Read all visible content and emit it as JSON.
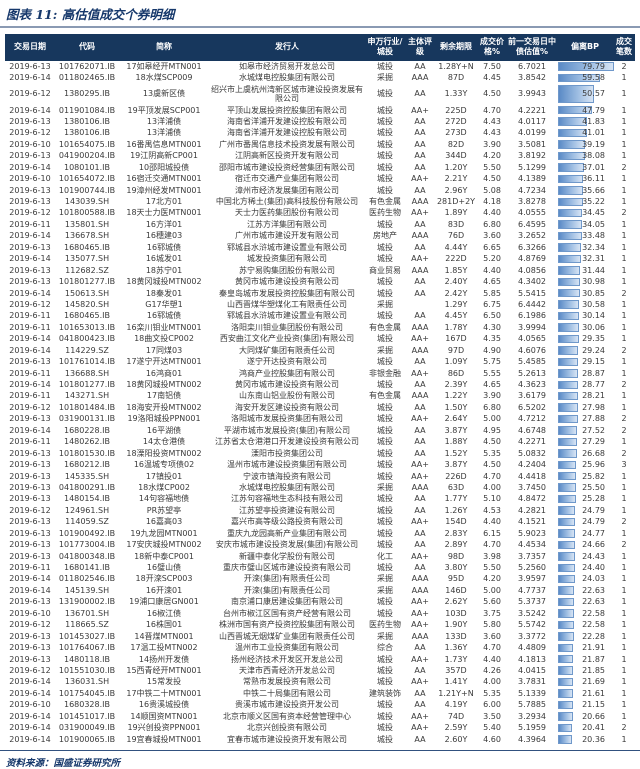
{
  "title": "图表 11: 高估值成交个券明细",
  "footer": {
    "source_label": "资料来源：国盛证券研究所"
  },
  "colors": {
    "header_bg": "#17375d",
    "title_text": "#16386b",
    "bar_start": "#5a8ac6",
    "bar_end": "#d7e4f4"
  },
  "table": {
    "bp_max": 79.79,
    "columns": [
      "交易日期",
      "代码",
      "简称",
      "发行人",
      "申万行业/城投",
      "主体评级",
      "剩余期限",
      "成交价格%",
      "前一交易日中债估值%",
      "偏离BP",
      "成交笔数"
    ],
    "rows": [
      [
        "2019-6-13",
        "101762071.IB",
        "17如皋经开MTN001",
        "如皋市经济贸易开发总公司",
        "城投",
        "AA",
        "1.28Y+N",
        "7.50",
        "6.7021",
        "79.79",
        "2"
      ],
      [
        "2019-6-14",
        "011802465.IB",
        "18水煤SCP009",
        "水城煤电控股集团有限公司",
        "采掘",
        "AAA",
        "87D",
        "4.45",
        "3.8542",
        "59.58",
        "1"
      ],
      [
        "2019-6-12",
        "1380295.IB",
        "13虞新区债",
        "绍兴市上虞杭州湾新区城市建设投资发展有限公司",
        "城投",
        "AA",
        "1.33Y",
        "4.50",
        "3.9943",
        "50.57",
        "1"
      ],
      [
        "2019-6-14",
        "011901084.IB",
        "19平顶发展SCP001",
        "平顶山发展投资控股集团有限公司",
        "城投",
        "AA+",
        "225D",
        "4.70",
        "4.2221",
        "47.79",
        "1"
      ],
      [
        "2019-6-13",
        "1380106.IB",
        "13洋浦债",
        "海南省洋浦开发建设控股有限公司",
        "城投",
        "AA",
        "272D",
        "4.43",
        "4.0117",
        "41.83",
        "1"
      ],
      [
        "2019-6-12",
        "1380106.IB",
        "13洋浦债",
        "海南省洋浦开发建设控股有限公司",
        "城投",
        "AA",
        "273D",
        "4.43",
        "4.0199",
        "41.01",
        "1"
      ],
      [
        "2019-6-10",
        "101654075.IB",
        "16番禺信息MTN001",
        "广州市番禺信息技术投资发展有限公司",
        "城投",
        "AA",
        "82D",
        "3.90",
        "3.5081",
        "39.19",
        "1"
      ],
      [
        "2019-6-13",
        "041900204.IB",
        "19江阴高新CP001",
        "江阴高新区投资开发有限公司",
        "城投",
        "AA",
        "344D",
        "4.20",
        "3.8192",
        "38.08",
        "1"
      ],
      [
        "2019-6-14",
        "1080101.IB",
        "10邵阳城投债",
        "邵阳市城市建设投资经营集团有限公司",
        "城投",
        "AA",
        "1.20Y",
        "5.50",
        "5.1299",
        "37.01",
        "2"
      ],
      [
        "2019-6-10",
        "101654072.IB",
        "16宿迁交通MTN001",
        "宿迁市交通产业集团有限公司",
        "城投",
        "AA+",
        "2.21Y",
        "4.50",
        "4.1389",
        "36.11",
        "1"
      ],
      [
        "2019-6-13",
        "101900744.IB",
        "19漳州经发MTN001",
        "漳州市经济发展集团有限公司",
        "城投",
        "AA",
        "2.96Y",
        "5.08",
        "4.7234",
        "35.66",
        "1"
      ],
      [
        "2019-6-13",
        "143039.SH",
        "17北方01",
        "中国北方稀土(集团)高科技股份有限公司",
        "有色金属",
        "AAA",
        "281D+2Y",
        "4.18",
        "3.8278",
        "35.22",
        "1"
      ],
      [
        "2019-6-12",
        "101800588.IB",
        "18天士力医MTN001",
        "天士力医药集团股份有限公司",
        "医药生物",
        "AA+",
        "1.89Y",
        "4.40",
        "4.0555",
        "34.45",
        "2"
      ],
      [
        "2019-6-11",
        "135801.SH",
        "16方洋01",
        "江苏方洋集团有限公司",
        "城投",
        "AA",
        "83D",
        "6.80",
        "6.4595",
        "34.05",
        "1"
      ],
      [
        "2019-6-14",
        "136678.SH",
        "16穗建03",
        "广州市城市建设开发有限公司",
        "房地产",
        "AAA",
        "76D",
        "3.60",
        "3.2652",
        "33.48",
        "1"
      ],
      [
        "2019-6-13",
        "1680465.IB",
        "16郓城债",
        "郓城县水浒城市建设置业有限公司",
        "城投",
        "AA",
        "4.44Y",
        "6.65",
        "6.3266",
        "32.34",
        "1"
      ],
      [
        "2019-6-14",
        "135077.SH",
        "16城发01",
        "城发投资集团有限公司",
        "城投",
        "AA+",
        "222D",
        "5.20",
        "4.8769",
        "32.31",
        "1"
      ],
      [
        "2019-6-13",
        "112682.SZ",
        "18苏宁01",
        "苏宁易购集团股份有限公司",
        "商业贸易",
        "AAA",
        "1.85Y",
        "4.40",
        "4.0856",
        "31.44",
        "1"
      ],
      [
        "2019-6-13",
        "101801277.IB",
        "18黄冈城投MTN002",
        "黄冈市城市建设投资有限公司",
        "城投",
        "AA",
        "2.40Y",
        "4.65",
        "4.3402",
        "30.98",
        "1"
      ],
      [
        "2019-6-14",
        "150613.SH",
        "18秦发01",
        "秦皇岛城市发展投资控股集团有限公司",
        "城投",
        "AA",
        "2.42Y",
        "5.85",
        "5.5415",
        "30.85",
        "2"
      ],
      [
        "2019-6-12",
        "145820.SH",
        "G17华塑1",
        "山西晋煤华塑煤化工有限责任公司",
        "采掘",
        "",
        "1.29Y",
        "6.75",
        "6.4442",
        "30.58",
        "1"
      ],
      [
        "2019-6-11",
        "1680465.IB",
        "16郓城债",
        "郓城县水浒城市建设置业有限公司",
        "城投",
        "AA",
        "4.45Y",
        "6.50",
        "6.1986",
        "30.14",
        "1"
      ],
      [
        "2019-6-11",
        "101653013.IB",
        "16栾川钼业MTN001",
        "洛阳栾川钼业集团股份有限公司",
        "有色金属",
        "AAA",
        "1.78Y",
        "4.30",
        "3.9994",
        "30.06",
        "1"
      ],
      [
        "2019-6-14",
        "041800423.IB",
        "18曲文投CP002",
        "西安曲江文化产业投资(集团)有限公司",
        "城投",
        "AA+",
        "167D",
        "4.35",
        "4.0565",
        "29.35",
        "1"
      ],
      [
        "2019-6-14",
        "114229.SZ",
        "17同煤03",
        "大同煤矿集团有限责任公司",
        "采掘",
        "AAA",
        "97D",
        "4.90",
        "4.6076",
        "29.24",
        "2"
      ],
      [
        "2019-6-13",
        "101761014.IB",
        "17遂宁开达MTN001",
        "遂宁开达投资有限公司",
        "城投",
        "AA",
        "1.09Y",
        "5.75",
        "5.4585",
        "29.15",
        "1"
      ],
      [
        "2019-6-11",
        "136688.SH",
        "16鸿商01",
        "鸿商产业控股集团有限公司",
        "非银金融",
        "AA+",
        "86D",
        "5.55",
        "5.2613",
        "28.87",
        "1"
      ],
      [
        "2019-6-14",
        "101801277.IB",
        "18黄冈城投MTN002",
        "黄冈市城市建设投资有限公司",
        "城投",
        "AA",
        "2.39Y",
        "4.65",
        "4.3623",
        "28.77",
        "2"
      ],
      [
        "2019-6-11",
        "143271.SH",
        "17南铝债",
        "山东南山铝业股份有限公司",
        "有色金属",
        "AAA",
        "1.22Y",
        "3.90",
        "3.6179",
        "28.21",
        "1"
      ],
      [
        "2019-6-12",
        "101801484.IB",
        "18海安开投MTN002",
        "海安开发区建设投资有限公司",
        "城投",
        "AA",
        "1.50Y",
        "6.80",
        "6.5202",
        "27.98",
        "1"
      ],
      [
        "2019-6-13",
        "031900131.IB",
        "19洛阳城投PPN001",
        "洛阳城市发展投资集团有限公司",
        "城投",
        "AA+",
        "2.64Y",
        "5.00",
        "4.7212",
        "27.88",
        "2"
      ],
      [
        "2019-6-14",
        "1680228.IB",
        "16平湖债",
        "平湖市城市发展投资(集团)有限公司",
        "城投",
        "AA",
        "3.87Y",
        "4.95",
        "4.6748",
        "27.52",
        "2"
      ],
      [
        "2019-6-11",
        "1480262.IB",
        "14太仓港债",
        "江苏省太仓港港口开发建设投资有限公司",
        "城投",
        "AA",
        "1.88Y",
        "4.50",
        "4.2271",
        "27.29",
        "1"
      ],
      [
        "2019-6-13",
        "101801530.IB",
        "18溧阳投资MTN002",
        "溧阳市投资集团公司",
        "城投",
        "AA",
        "1.52Y",
        "5.35",
        "5.0832",
        "26.68",
        "2"
      ],
      [
        "2019-6-13",
        "1680212.IB",
        "16温城专项债02",
        "温州市城市建设投资集团有限公司",
        "城投",
        "AA+",
        "3.87Y",
        "4.50",
        "4.2404",
        "25.96",
        "3"
      ],
      [
        "2019-6-13",
        "145335.SH",
        "17镇投01",
        "宁波市镇海投资有限公司",
        "城投",
        "AA+",
        "226D",
        "4.70",
        "4.4418",
        "25.82",
        "1"
      ],
      [
        "2019-6-13",
        "041800291.IB",
        "18水煤CP002",
        "水城煤电控股集团有限公司",
        "采掘",
        "AAA",
        "63D",
        "4.00",
        "3.7450",
        "25.50",
        "1"
      ],
      [
        "2019-6-13",
        "1480154.IB",
        "14句容福地债",
        "江苏句容福地生态科技有限公司",
        "城投",
        "AA",
        "1.77Y",
        "5.10",
        "4.8472",
        "25.28",
        "1"
      ],
      [
        "2019-6-12",
        "124961.SH",
        "PR苏望亭",
        "江苏望亭投资建设有限公司",
        "城投",
        "AA",
        "1.26Y",
        "4.53",
        "4.2821",
        "24.79",
        "1"
      ],
      [
        "2019-6-13",
        "114059.SZ",
        "16嘉高03",
        "嘉兴市高等级公路投资有限公司",
        "城投",
        "AA+",
        "154D",
        "4.40",
        "4.1521",
        "24.79",
        "2"
      ],
      [
        "2019-6-13",
        "101900492.IB",
        "19九龙园MTN001",
        "重庆九龙园高新产业集团有限公司",
        "城投",
        "AA",
        "2.83Y",
        "6.15",
        "5.9023",
        "24.77",
        "1"
      ],
      [
        "2019-6-13",
        "101773004.IB",
        "17安庆城投MTN002",
        "安庆市城市建设投资发展(集团)有限公司",
        "城投",
        "AA",
        "2.89Y",
        "4.70",
        "4.4534",
        "24.66",
        "2"
      ],
      [
        "2019-6-13",
        "041800348.IB",
        "18新中泰CP001",
        "新疆中泰化学股份有限公司",
        "化工",
        "AA+",
        "98D",
        "3.98",
        "3.7357",
        "24.43",
        "1"
      ],
      [
        "2019-6-11",
        "1680141.IB",
        "16璧山债",
        "重庆市璧山区城市建设投资有限公司",
        "城投",
        "AA",
        "3.80Y",
        "5.50",
        "5.2560",
        "24.40",
        "1"
      ],
      [
        "2019-6-14",
        "011802546.IB",
        "18开滦SCP003",
        "开滦(集团)有限责任公司",
        "采掘",
        "AAA",
        "95D",
        "4.20",
        "3.9597",
        "24.03",
        "1"
      ],
      [
        "2019-6-14",
        "145139.SH",
        "16开滦01",
        "开滦(集团)有限责任公司",
        "采掘",
        "AAA",
        "146D",
        "5.00",
        "4.7737",
        "22.63",
        "1"
      ],
      [
        "2019-6-13",
        "131900002.IB",
        "19浦口康居GN001",
        "南京浦口康居建设集团有限公司",
        "城投",
        "AA+",
        "2.62Y",
        "5.60",
        "5.3737",
        "22.63",
        "1"
      ],
      [
        "2019-6-10",
        "136701.SH",
        "16椒江债",
        "台州市椒江区国有资产经营有限公司",
        "城投",
        "AA+",
        "103D",
        "3.75",
        "3.5242",
        "22.58",
        "1"
      ],
      [
        "2019-6-12",
        "118665.SZ",
        "16株国01",
        "株洲市国有资产投资控股集团有限公司",
        "医药生物",
        "AA+",
        "1.90Y",
        "5.80",
        "5.5742",
        "22.58",
        "1"
      ],
      [
        "2019-6-13",
        "101453027.IB",
        "14晋煤MTN001",
        "山西晋城无烟煤矿业集团有限责任公司",
        "采掘",
        "AAA",
        "133D",
        "3.60",
        "3.3772",
        "22.28",
        "1"
      ],
      [
        "2019-6-13",
        "101764067.IB",
        "17温工投MTN002",
        "温州市工业投资集团有限公司",
        "综合",
        "AA",
        "1.36Y",
        "4.70",
        "4.4809",
        "21.91",
        "1"
      ],
      [
        "2019-6-13",
        "1480118.IB",
        "14扬州开发债",
        "扬州经济技术开发区开发总公司",
        "城投",
        "AA+",
        "1.73Y",
        "4.40",
        "4.1813",
        "21.87",
        "1"
      ],
      [
        "2019-6-12",
        "101551030.IB",
        "15西青经开MTN001",
        "天津市西青经济开发总公司",
        "城投",
        "AA",
        "357D",
        "4.26",
        "4.0415",
        "21.85",
        "1"
      ],
      [
        "2019-6-14",
        "136031.SH",
        "15常发投",
        "常熟市发展投资有限公司",
        "城投",
        "AA+",
        "1.41Y",
        "4.00",
        "3.7831",
        "21.69",
        "1"
      ],
      [
        "2019-6-14",
        "101754045.IB",
        "17中铁二十MTN001",
        "中铁二十局集团有限公司",
        "建筑装饰",
        "AA",
        "1.21Y+N",
        "5.35",
        "5.1339",
        "21.61",
        "1"
      ],
      [
        "2019-6-10",
        "1680328.IB",
        "16贵溪城投债",
        "贵溪市城市建设投资开发公司",
        "城投",
        "AA",
        "4.19Y",
        "6.00",
        "5.7885",
        "21.15",
        "1"
      ],
      [
        "2019-6-14",
        "101451017.IB",
        "14顺国资MTN001",
        "北京市顺义区国有资本经营管理中心",
        "城投",
        "AA+",
        "74D",
        "3.50",
        "3.2934",
        "20.66",
        "1"
      ],
      [
        "2019-6-14",
        "031900049.IB",
        "19兴创投资PPN001",
        "北京兴创投资有限公司",
        "城投",
        "AA+",
        "2.59Y",
        "5.40",
        "5.1959",
        "20.41",
        "2"
      ],
      [
        "2019-6-14",
        "101900065.IB",
        "19宜春城投MTN001",
        "宜春市城市建设投资开发有限公司",
        "城投",
        "AA",
        "2.60Y",
        "4.60",
        "4.3964",
        "20.36",
        "1"
      ]
    ]
  }
}
